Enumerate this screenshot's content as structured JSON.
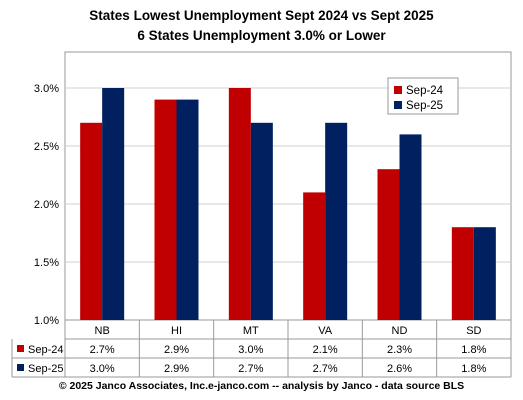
{
  "chart_data": {
    "type": "bar",
    "title": "States Lowest Unemployment Sept 2024 vs Sept 2025",
    "subtitle": "6 States  Unemployment 3.0% or Lower",
    "categories": [
      "NB",
      "HI",
      "MT",
      "VA",
      "ND",
      "SD"
    ],
    "series": [
      {
        "name": "Sep-24",
        "values": [
          2.7,
          2.9,
          3.0,
          2.1,
          2.3,
          1.8
        ],
        "labels": [
          "2.7%",
          "2.9%",
          "3.0%",
          "2.1%",
          "2.3%",
          "1.8%"
        ],
        "color": "#C00000"
      },
      {
        "name": "Sep-25",
        "values": [
          3.0,
          2.9,
          2.7,
          2.7,
          2.6,
          1.8
        ],
        "labels": [
          "3.0%",
          "2.9%",
          "2.7%",
          "2.7%",
          "2.6%",
          "1.8%"
        ],
        "color": "#002060"
      }
    ],
    "ylim": [
      1.0,
      3.0
    ],
    "yticks": [
      1.0,
      1.5,
      2.0,
      2.5,
      3.0
    ],
    "ytick_labels": [
      "1.0%",
      "1.5%",
      "2.0%",
      "2.5%",
      "3.0%"
    ],
    "grid": true,
    "legend": "top-right",
    "data_table": true,
    "footer": "© 2025 Janco Associates, Inc.e-janco.com -- analysis by Janco - data source BLS"
  }
}
